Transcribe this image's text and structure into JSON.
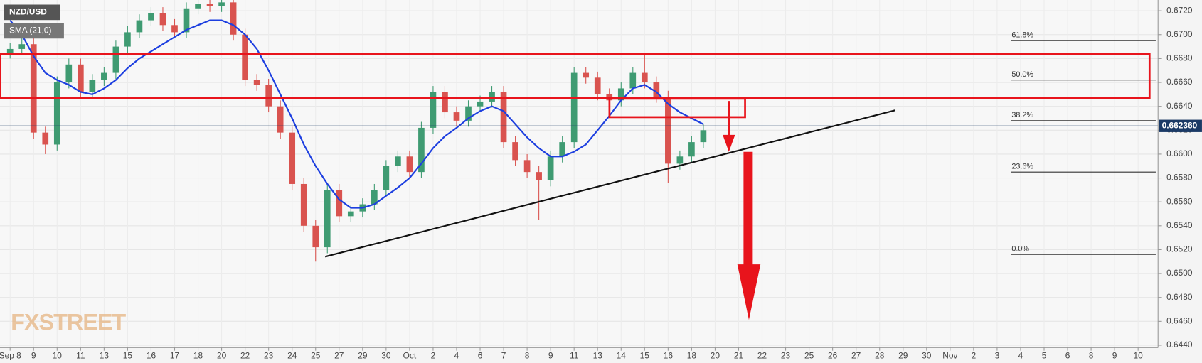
{
  "chart_data": {
    "type": "candlestick",
    "title": "NZD/USD",
    "watermark": "FXSTREET",
    "x": [
      0,
      0.5,
      1,
      1.5,
      2,
      2.5,
      3,
      3.5,
      4,
      4.5,
      5,
      5.5,
      6,
      6.5,
      7,
      7.5,
      8,
      8.5,
      9,
      9.5,
      10,
      10.5,
      11,
      11.5,
      12,
      12.5,
      13,
      13.5,
      14,
      14.5,
      15,
      15.5,
      16,
      16.5,
      17,
      17.5,
      18,
      18.5,
      19,
      19.5,
      20,
      20.5,
      21,
      21.5,
      22,
      22.5,
      23,
      23.5,
      24,
      24.5,
      25,
      25.5,
      26,
      26.5,
      27,
      27.5,
      28,
      28.5,
      29,
      29.5
    ],
    "open": [
      0.6685,
      0.6688,
      0.6692,
      0.6618,
      0.6608,
      0.666,
      0.6675,
      0.6652,
      0.6662,
      0.6668,
      0.669,
      0.6702,
      0.6712,
      0.6718,
      0.6708,
      0.6702,
      0.6722,
      0.6726,
      0.6724,
      0.6727,
      0.67,
      0.6662,
      0.6658,
      0.664,
      0.6618,
      0.6575,
      0.654,
      0.6522,
      0.657,
      0.6548,
      0.6552,
      0.6558,
      0.657,
      0.659,
      0.6598,
      0.6585,
      0.6622,
      0.6652,
      0.6635,
      0.6628,
      0.664,
      0.6644,
      0.6652,
      0.661,
      0.6595,
      0.6585,
      0.6578,
      0.6598,
      0.661,
      0.6668,
      0.6664,
      0.665,
      0.6645,
      0.6655,
      0.6668,
      0.666,
      0.6648,
      0.6592,
      0.6598,
      0.661
    ],
    "high": [
      0.6693,
      0.6697,
      0.6697,
      0.6623,
      0.6665,
      0.668,
      0.668,
      0.6667,
      0.6673,
      0.6695,
      0.6707,
      0.6717,
      0.6723,
      0.6723,
      0.6713,
      0.6727,
      0.6731,
      0.6731,
      0.6732,
      0.6732,
      0.6705,
      0.6667,
      0.6663,
      0.6645,
      0.6623,
      0.658,
      0.6545,
      0.6575,
      0.6575,
      0.6557,
      0.6563,
      0.6575,
      0.6595,
      0.6603,
      0.6603,
      0.6627,
      0.6657,
      0.6657,
      0.664,
      0.6645,
      0.6649,
      0.6657,
      0.6657,
      0.6615,
      0.66,
      0.659,
      0.6603,
      0.6615,
      0.6673,
      0.6673,
      0.6669,
      0.6655,
      0.666,
      0.6673,
      0.6683,
      0.6665,
      0.6653,
      0.6603,
      0.6615,
      0.6625
    ],
    "low": [
      0.668,
      0.6683,
      0.6613,
      0.66,
      0.6603,
      0.6655,
      0.6647,
      0.6647,
      0.6657,
      0.6663,
      0.6685,
      0.6697,
      0.6707,
      0.6703,
      0.6697,
      0.6697,
      0.6717,
      0.6719,
      0.6719,
      0.6695,
      0.6657,
      0.6653,
      0.6635,
      0.6613,
      0.657,
      0.6535,
      0.651,
      0.6517,
      0.6543,
      0.6543,
      0.6547,
      0.6553,
      0.6565,
      0.6585,
      0.658,
      0.658,
      0.6617,
      0.663,
      0.6623,
      0.6623,
      0.6635,
      0.6639,
      0.6605,
      0.659,
      0.658,
      0.6545,
      0.6573,
      0.6593,
      0.6605,
      0.6659,
      0.6645,
      0.664,
      0.664,
      0.665,
      0.6655,
      0.6643,
      0.6576,
      0.6587,
      0.6593,
      0.6605
    ],
    "close": [
      0.6688,
      0.6692,
      0.6618,
      0.6608,
      0.666,
      0.6675,
      0.6652,
      0.6662,
      0.6668,
      0.669,
      0.6702,
      0.6712,
      0.6718,
      0.6708,
      0.6702,
      0.6722,
      0.6726,
      0.6724,
      0.6727,
      0.67,
      0.6662,
      0.6658,
      0.664,
      0.6618,
      0.6575,
      0.654,
      0.6522,
      0.657,
      0.6548,
      0.6552,
      0.6558,
      0.657,
      0.659,
      0.6598,
      0.6585,
      0.6622,
      0.6652,
      0.6635,
      0.6628,
      0.664,
      0.6644,
      0.6652,
      0.661,
      0.6595,
      0.6585,
      0.6578,
      0.6598,
      0.661,
      0.6668,
      0.6664,
      0.665,
      0.6645,
      0.6655,
      0.6668,
      0.666,
      0.6648,
      0.6592,
      0.6598,
      0.661,
      0.662
    ],
    "up_color": "#3f9b72",
    "down_color": "#d9534f",
    "overlays": [
      {
        "name": "SMA (21,0)",
        "color": "#1d3fe0",
        "values": [
          0.6712,
          0.67,
          0.6682,
          0.6668,
          0.6662,
          0.6658,
          0.6652,
          0.665,
          0.6655,
          0.6662,
          0.6672,
          0.668,
          0.6686,
          0.6692,
          0.6698,
          0.6704,
          0.6708,
          0.6712,
          0.6712,
          0.6708,
          0.67,
          0.6688,
          0.667,
          0.665,
          0.663,
          0.6608,
          0.659,
          0.6575,
          0.6562,
          0.6555,
          0.6555,
          0.6558,
          0.6565,
          0.6572,
          0.658,
          0.6592,
          0.6605,
          0.6615,
          0.6622,
          0.663,
          0.6636,
          0.664,
          0.6636,
          0.6625,
          0.6614,
          0.6605,
          0.6598,
          0.6598,
          0.6602,
          0.6608,
          0.662,
          0.6632,
          0.6645,
          0.6655,
          0.6658,
          0.6652,
          0.6642,
          0.6635,
          0.663,
          0.6625
        ]
      }
    ],
    "fib_levels": [
      {
        "value": 0.6695,
        "label": "61.8%"
      },
      {
        "value": 0.6662,
        "label": "50.0%"
      },
      {
        "value": 0.6628,
        "label": "38.2%"
      },
      {
        "value": 0.6585,
        "label": "23.6%"
      },
      {
        "value": 0.6516,
        "label": "0.0%"
      }
    ],
    "last_price": {
      "value": 0.66236,
      "label": "0.662360"
    },
    "ylim": [
      0.6438,
      0.6729
    ],
    "yticks": [
      {
        "value": 0.644,
        "label": "0.6440"
      },
      {
        "value": 0.646,
        "label": "0.6460"
      },
      {
        "value": 0.648,
        "label": "0.6480"
      },
      {
        "value": 0.65,
        "label": "0.6500"
      },
      {
        "value": 0.652,
        "label": "0.6520"
      },
      {
        "value": 0.654,
        "label": "0.6540"
      },
      {
        "value": 0.656,
        "label": "0.6560"
      },
      {
        "value": 0.658,
        "label": "0.6580"
      },
      {
        "value": 0.66,
        "label": "0.6600"
      },
      {
        "value": 0.662,
        "label": "0.6620"
      },
      {
        "value": 0.664,
        "label": "0.6640"
      },
      {
        "value": 0.666,
        "label": "0.6660"
      },
      {
        "value": 0.668,
        "label": "0.6680"
      },
      {
        "value": 0.67,
        "label": "0.6700"
      },
      {
        "value": 0.672,
        "label": "0.6720"
      }
    ],
    "xlim": [
      -0.43,
      48.75
    ],
    "xticks": [
      {
        "value": 0,
        "label": "Sep 8"
      },
      {
        "value": 1,
        "label": "9"
      },
      {
        "value": 2,
        "label": "10"
      },
      {
        "value": 3,
        "label": "11"
      },
      {
        "value": 4,
        "label": "13"
      },
      {
        "value": 5,
        "label": "15"
      },
      {
        "value": 6,
        "label": "16"
      },
      {
        "value": 7,
        "label": "17"
      },
      {
        "value": 8,
        "label": "18"
      },
      {
        "value": 9,
        "label": "20"
      },
      {
        "value": 10,
        "label": "22"
      },
      {
        "value": 11,
        "label": "23"
      },
      {
        "value": 12,
        "label": "24"
      },
      {
        "value": 13,
        "label": "25"
      },
      {
        "value": 14,
        "label": "27"
      },
      {
        "value": 15,
        "label": "29"
      },
      {
        "value": 16,
        "label": "30"
      },
      {
        "value": 17,
        "label": "Oct"
      },
      {
        "value": 18,
        "label": "2"
      },
      {
        "value": 19,
        "label": "4"
      },
      {
        "value": 20,
        "label": "6"
      },
      {
        "value": 21,
        "label": "7"
      },
      {
        "value": 22,
        "label": "8"
      },
      {
        "value": 23,
        "label": "9"
      },
      {
        "value": 24,
        "label": "11"
      },
      {
        "value": 25,
        "label": "13"
      },
      {
        "value": 26,
        "label": "14"
      },
      {
        "value": 27,
        "label": "15"
      },
      {
        "value": 28,
        "label": "16"
      },
      {
        "value": 29,
        "label": "18"
      },
      {
        "value": 30,
        "label": "20"
      },
      {
        "value": 31,
        "label": "21"
      },
      {
        "value": 32,
        "label": "22"
      },
      {
        "value": 33,
        "label": "23"
      },
      {
        "value": 34,
        "label": "25"
      },
      {
        "value": 35,
        "label": "26"
      },
      {
        "value": 36,
        "label": "27"
      },
      {
        "value": 37,
        "label": "28"
      },
      {
        "value": 38,
        "label": "29"
      },
      {
        "value": 39,
        "label": "30"
      },
      {
        "value": 40,
        "label": "Nov"
      },
      {
        "value": 41,
        "label": "2"
      },
      {
        "value": 42,
        "label": "3"
      },
      {
        "value": 43,
        "label": "4"
      },
      {
        "value": 44,
        "label": "5"
      },
      {
        "value": 45,
        "label": "6"
      },
      {
        "value": 46,
        "label": "8"
      },
      {
        "value": 47,
        "label": "9"
      },
      {
        "value": 48,
        "label": "10"
      }
    ],
    "grid": true
  }
}
